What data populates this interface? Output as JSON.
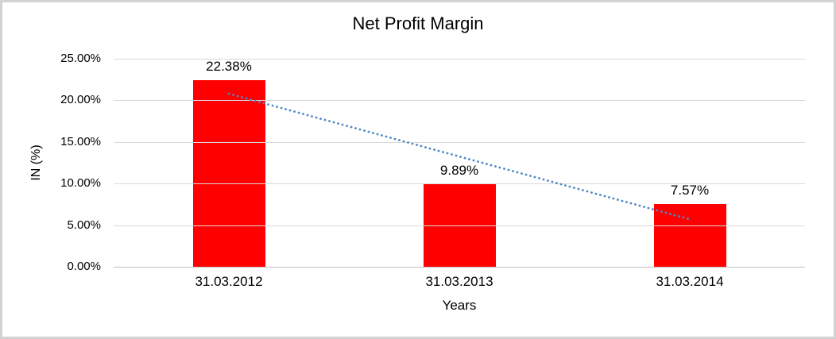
{
  "chart_data": {
    "type": "bar",
    "title": "Net Profit Margin",
    "xlabel": "Years",
    "ylabel": "IN (%)",
    "categories": [
      "31.03.2012",
      "31.03.2013",
      "31.03.2014"
    ],
    "values": [
      22.38,
      9.89,
      7.57
    ],
    "data_labels": [
      "22.38%",
      "9.89%",
      "7.57%"
    ],
    "ylim": [
      0,
      25
    ],
    "ytick_step": 5,
    "ytick_labels": [
      "0.00%",
      "5.00%",
      "10.00%",
      "15.00%",
      "20.00%",
      "25.00%"
    ],
    "grid": true,
    "legend": "none",
    "bar_color": "#FF0000",
    "gridline_color": "#D9D9D9",
    "axis_line_color": "#BFBFBF",
    "text_color": "#000000",
    "trendline": {
      "type": "linear",
      "style": "dotted",
      "color": "#4E87C7",
      "start_value": 20.8,
      "end_value": 5.7
    }
  }
}
